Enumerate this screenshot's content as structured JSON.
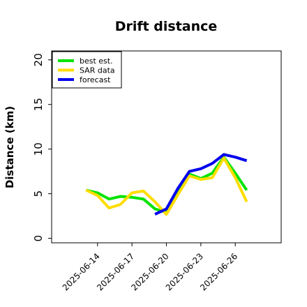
{
  "chart_data": {
    "type": "line",
    "title": "Drift distance",
    "xlabel": "",
    "ylabel": "Distance (km)",
    "ylim": [
      -0.5,
      21
    ],
    "yticks": [
      0,
      5,
      10,
      15,
      20
    ],
    "xtick_labels": [
      "2025-06-14",
      "2025-06-17",
      "2025-06-20",
      "2025-06-23",
      "2025-06-26"
    ],
    "xlim": [
      "2025-06-10",
      "2025-06-30"
    ],
    "legend_position": "top-left",
    "grid": false,
    "series": [
      {
        "name": "best est.",
        "color": "#00e400",
        "x": [
          "2025-06-13",
          "2025-06-14",
          "2025-06-15",
          "2025-06-16",
          "2025-06-17",
          "2025-06-18",
          "2025-06-19",
          "2025-06-20",
          "2025-06-21",
          "2025-06-22",
          "2025-06-23",
          "2025-06-24",
          "2025-06-25",
          "2025-06-26",
          "2025-06-27"
        ],
        "values": [
          5.4,
          5.1,
          4.4,
          4.7,
          4.6,
          4.4,
          3.3,
          2.9,
          5.1,
          7.2,
          6.7,
          7.3,
          9.1,
          7.3,
          5.4
        ]
      },
      {
        "name": "SAR data",
        "color": "#ffdd00",
        "x": [
          "2025-06-13",
          "2025-06-14",
          "2025-06-15",
          "2025-06-16",
          "2025-06-17",
          "2025-06-18",
          "2025-06-19",
          "2025-06-20",
          "2025-06-21",
          "2025-06-22",
          "2025-06-23",
          "2025-06-24",
          "2025-06-25",
          "2025-06-26",
          "2025-06-27"
        ],
        "values": [
          5.4,
          4.8,
          3.4,
          3.8,
          5.1,
          5.3,
          4.1,
          2.7,
          4.9,
          7.0,
          6.6,
          6.8,
          9.0,
          6.8,
          4.1
        ]
      },
      {
        "name": "forecast",
        "color": "#0000ee",
        "x": [
          "2025-06-19",
          "2025-06-20",
          "2025-06-21",
          "2025-06-22",
          "2025-06-23",
          "2025-06-24",
          "2025-06-25",
          "2025-06-26",
          "2025-06-27"
        ],
        "values": [
          2.7,
          3.3,
          5.6,
          7.5,
          7.8,
          8.4,
          9.4,
          9.1,
          8.7
        ]
      }
    ]
  }
}
